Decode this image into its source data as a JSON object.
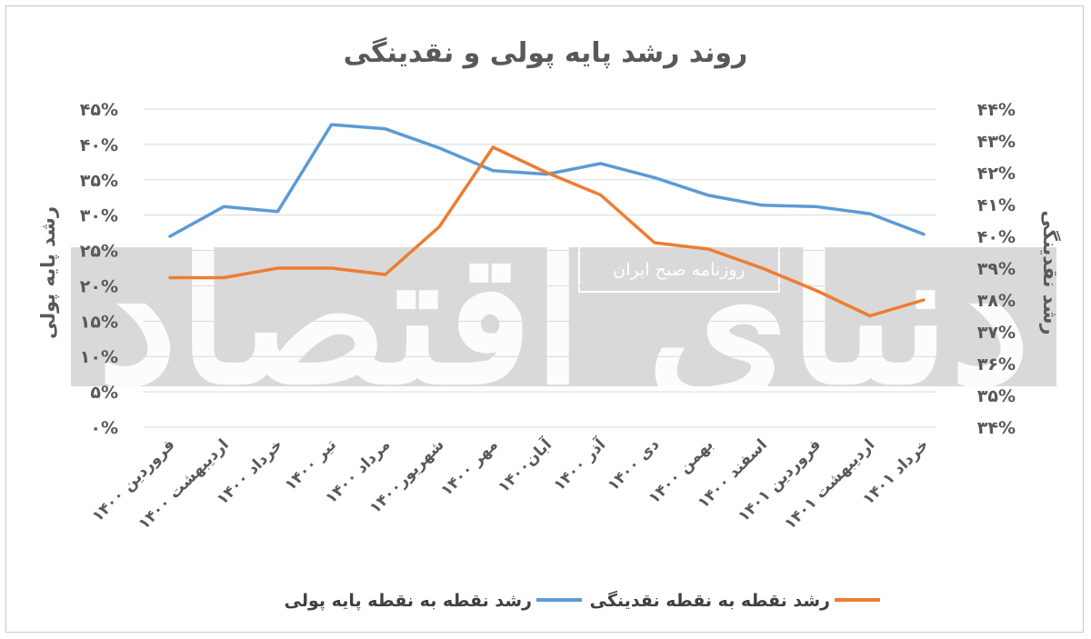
{
  "chart_data": {
    "type": "line",
    "title": "روند رشد پایه پولی و نقدینگی",
    "y_left_label": "رشد پایه پولی",
    "y_right_label": "رشد نقدینگی",
    "y_left_ticks": [
      "۰%",
      "۵%",
      "۱۰%",
      "۱۵%",
      "۲۰%",
      "۲۵%",
      "۳۰%",
      "۳۵%",
      "۴۰%",
      "۴۵%"
    ],
    "y_right_ticks": [
      "۳۴%",
      "۳۵%",
      "۳۶%",
      "۳۷%",
      "۳۸%",
      "۳۹%",
      "۴۰%",
      "۴۱%",
      "۴۲%",
      "۴۳%",
      "۴۴%"
    ],
    "y_left_range": [
      0,
      45
    ],
    "y_right_range": [
      34,
      44
    ],
    "categories": [
      "فروردین ۱۴۰۰",
      "اردیبهشت ۱۴۰۰",
      "خرداد ۱۴۰۰",
      "تیر ۱۴۰۰",
      "مرداد ۱۴۰۰",
      "شهریور۱۴۰۰",
      "مهر ۱۴۰۰",
      "آبان۱۴۰۰",
      "آذر ۱۴۰۰",
      "دی ۱۴۰۰",
      "بهمن ۱۴۰۰",
      "اسفند ۱۴۰۰",
      "فروردین ۱۴۰۱",
      "اردیبهشت ۱۴۰۱",
      "خرداد ۱۴۰۱"
    ],
    "series": [
      {
        "name": "رشد نقطه به نقطه پایه پولی",
        "axis": "left",
        "color": "#5b9bd5",
        "values": [
          27.0,
          31.2,
          30.5,
          42.8,
          42.2,
          39.5,
          36.3,
          35.8,
          37.3,
          35.3,
          32.8,
          31.4,
          31.2,
          30.2,
          27.3
        ]
      },
      {
        "name": "رشد نقطه به نقطه نقدینگی",
        "axis": "right",
        "color": "#ed7d31",
        "values": [
          38.7,
          38.7,
          39.0,
          39.0,
          38.8,
          40.3,
          42.8,
          42.0,
          41.3,
          39.8,
          39.6,
          39.0,
          38.3,
          37.5,
          38.0
        ]
      }
    ],
    "grid": true,
    "legend_position": "bottom"
  },
  "watermark": {
    "logo_text": "دنیای اقتصاد",
    "caption": "روزنامه صبح ایران"
  }
}
